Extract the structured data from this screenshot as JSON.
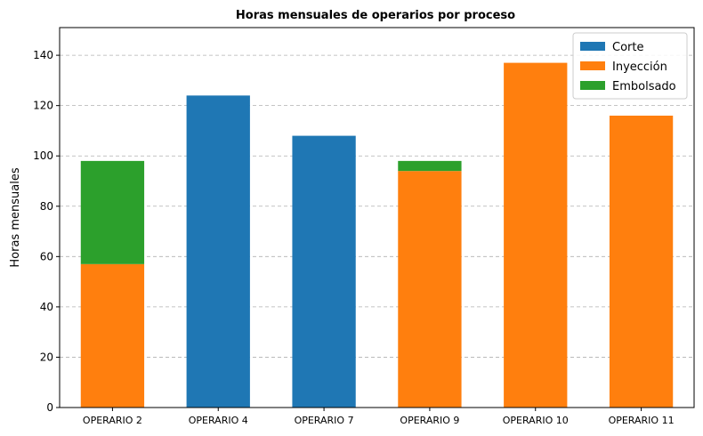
{
  "chart_data": {
    "type": "bar",
    "stacked": true,
    "title": "Horas mensuales de operarios por proceso",
    "xlabel": "",
    "ylabel": "Horas mensuales",
    "ylim": [
      0,
      151
    ],
    "yticks": [
      0,
      20,
      40,
      60,
      80,
      100,
      120,
      140
    ],
    "grid": "horizontal-dashed",
    "legend_position": "top-right",
    "categories": [
      "OPERARIO 2",
      "OPERARIO 4",
      "OPERARIO 7",
      "OPERARIO 9",
      "OPERARIO 10",
      "OPERARIO 11"
    ],
    "series": [
      {
        "name": "Corte",
        "color": "#1f77b4",
        "values": [
          0,
          124,
          108,
          0,
          0,
          0
        ]
      },
      {
        "name": "Inyección",
        "color": "#ff7f0e",
        "values": [
          57,
          0,
          0,
          94,
          137,
          116
        ]
      },
      {
        "name": "Embolsado",
        "color": "#2ca02c",
        "values": [
          41,
          0,
          0,
          4,
          0,
          0
        ]
      }
    ]
  }
}
